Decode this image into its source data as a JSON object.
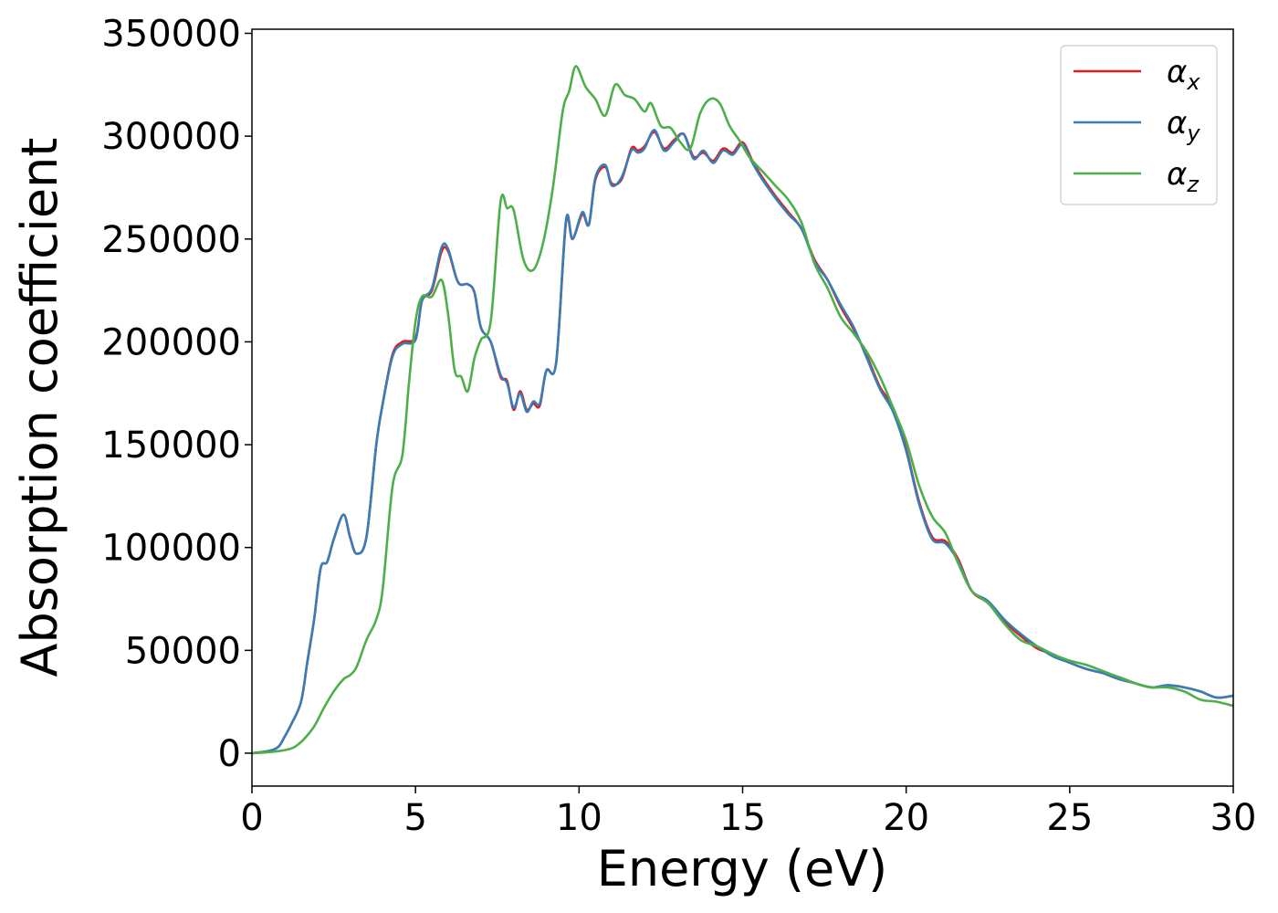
{
  "chart_data": {
    "type": "line",
    "xlabel": "Energy (eV)",
    "ylabel": "Absorption coefficient",
    "xlim": [
      0,
      30
    ],
    "ylim": [
      -16000,
      352000
    ],
    "x_ticks": [
      "0",
      "5",
      "10",
      "15",
      "20",
      "25",
      "30"
    ],
    "y_ticks": [
      "0",
      "50000",
      "100000",
      "150000",
      "200000",
      "250000",
      "300000",
      "350000"
    ],
    "grid": false,
    "legend_position": "top-right",
    "series": [
      {
        "name": "αx",
        "symbol": "α",
        "subscript": "x",
        "color": "#e41a1c",
        "x": [
          0,
          0.5,
          0.8,
          1.0,
          1.2,
          1.5,
          1.7,
          1.9,
          2.1,
          2.3,
          2.5,
          2.8,
          3.0,
          3.2,
          3.5,
          3.8,
          4.0,
          4.3,
          4.6,
          5.0,
          5.2,
          5.5,
          5.8,
          6.0,
          6.3,
          6.6,
          6.8,
          7.0,
          7.3,
          7.6,
          7.8,
          8.0,
          8.2,
          8.4,
          8.6,
          8.8,
          9.0,
          9.3,
          9.6,
          9.8,
          10.1,
          10.3,
          10.5,
          10.8,
          11.0,
          11.3,
          11.6,
          11.8,
          12.0,
          12.3,
          12.6,
          12.9,
          13.2,
          13.5,
          13.8,
          14.1,
          14.4,
          14.7,
          15.0,
          15.3,
          15.6,
          16.0,
          16.4,
          16.8,
          17.2,
          17.6,
          18.0,
          18.4,
          18.8,
          19.2,
          19.6,
          20.0,
          20.4,
          20.8,
          21.2,
          21.6,
          22.0,
          22.5,
          23.0,
          23.5,
          24.0,
          24.5,
          25.0,
          25.5,
          26.0,
          26.5,
          27.0,
          27.5,
          28.0,
          28.5,
          29.0,
          29.5,
          30.0
        ],
        "values": [
          0,
          1000,
          3000,
          8000,
          14000,
          25000,
          45000,
          65000,
          90000,
          93000,
          104000,
          116000,
          105000,
          97000,
          105000,
          150000,
          170000,
          194000,
          200000,
          202000,
          220000,
          225000,
          244000,
          244000,
          229000,
          228000,
          224000,
          207000,
          200000,
          183000,
          181000,
          167000,
          176000,
          167000,
          170000,
          169000,
          186000,
          190000,
          258000,
          250000,
          262000,
          257000,
          279000,
          285000,
          277000,
          279000,
          294000,
          293000,
          295000,
          302000,
          294000,
          298000,
          301000,
          290000,
          292000,
          288000,
          294000,
          292000,
          297000,
          288000,
          280000,
          271000,
          263000,
          255000,
          240000,
          230000,
          217000,
          206000,
          193000,
          178000,
          168000,
          148000,
          122000,
          105000,
          103000,
          94000,
          79000,
          73000,
          64000,
          57000,
          51000,
          48000,
          44000,
          41000,
          39000,
          37000,
          34000,
          32000,
          33000,
          32000,
          30000,
          27000,
          28000
        ]
      },
      {
        "name": "αy",
        "symbol": "α",
        "subscript": "y",
        "color": "#377eb8",
        "x": [
          0,
          0.5,
          0.8,
          1.0,
          1.2,
          1.5,
          1.7,
          1.9,
          2.1,
          2.3,
          2.5,
          2.8,
          3.0,
          3.2,
          3.5,
          3.8,
          4.0,
          4.3,
          4.6,
          5.0,
          5.2,
          5.5,
          5.8,
          6.0,
          6.3,
          6.6,
          6.8,
          7.0,
          7.3,
          7.6,
          7.8,
          8.0,
          8.2,
          8.4,
          8.6,
          8.8,
          9.0,
          9.3,
          9.6,
          9.8,
          10.1,
          10.3,
          10.5,
          10.8,
          11.0,
          11.3,
          11.6,
          11.8,
          12.0,
          12.3,
          12.6,
          12.9,
          13.2,
          13.5,
          13.8,
          14.1,
          14.4,
          14.7,
          15.0,
          15.3,
          15.6,
          16.0,
          16.4,
          16.8,
          17.2,
          17.6,
          18.0,
          18.4,
          18.8,
          19.2,
          19.6,
          20.0,
          20.4,
          20.8,
          21.2,
          21.6,
          22.0,
          22.5,
          23.0,
          23.5,
          24.0,
          24.5,
          25.0,
          25.5,
          26.0,
          26.5,
          27.0,
          27.5,
          28.0,
          28.5,
          29.0,
          29.5,
          30.0
        ],
        "values": [
          0,
          1000,
          3000,
          8000,
          14000,
          25000,
          45000,
          65000,
          90000,
          93000,
          104000,
          116000,
          105000,
          97000,
          105000,
          150000,
          170000,
          193000,
          199000,
          201000,
          220000,
          226000,
          246000,
          245000,
          229000,
          228000,
          224000,
          207000,
          200000,
          184000,
          180000,
          168000,
          175000,
          166000,
          171000,
          170000,
          186000,
          190000,
          259000,
          250000,
          263000,
          257000,
          280000,
          286000,
          276000,
          280000,
          293000,
          292000,
          294000,
          303000,
          293000,
          297000,
          301000,
          289000,
          293000,
          287000,
          293000,
          291000,
          296000,
          287000,
          279000,
          270000,
          262000,
          255000,
          239000,
          230000,
          218000,
          207000,
          192000,
          177000,
          166000,
          147000,
          121000,
          104000,
          102000,
          93000,
          79000,
          74000,
          65000,
          58000,
          52000,
          47000,
          44000,
          41000,
          39000,
          36000,
          34000,
          32000,
          33000,
          32000,
          30000,
          27000,
          28000
        ]
      },
      {
        "name": "αz",
        "symbol": "α",
        "subscript": "z",
        "color": "#4daf4a",
        "x": [
          0,
          0.5,
          1.0,
          1.3,
          1.6,
          1.9,
          2.2,
          2.5,
          2.8,
          3.0,
          3.2,
          3.5,
          3.8,
          4.0,
          4.3,
          4.6,
          4.8,
          5.0,
          5.2,
          5.5,
          5.8,
          6.0,
          6.2,
          6.4,
          6.6,
          6.8,
          7.0,
          7.3,
          7.6,
          7.8,
          8.0,
          8.3,
          8.6,
          8.9,
          9.2,
          9.5,
          9.7,
          9.9,
          10.2,
          10.5,
          10.8,
          11.1,
          11.4,
          11.7,
          12.0,
          12.2,
          12.5,
          12.8,
          13.1,
          13.4,
          13.7,
          14.0,
          14.3,
          14.6,
          14.9,
          15.2,
          15.6,
          16.0,
          16.4,
          16.8,
          17.2,
          17.6,
          18.0,
          18.4,
          18.8,
          19.2,
          19.6,
          20.0,
          20.4,
          20.8,
          21.2,
          21.6,
          22.0,
          22.5,
          23.0,
          23.5,
          24.0,
          24.5,
          25.0,
          25.5,
          26.0,
          26.5,
          27.0,
          27.5,
          28.0,
          28.5,
          29.0,
          29.5,
          30.0
        ],
        "values": [
          0,
          500,
          1500,
          3000,
          7000,
          13000,
          22000,
          30000,
          36000,
          38000,
          42000,
          55000,
          65000,
          80000,
          130000,
          145000,
          180000,
          210000,
          222000,
          222000,
          230000,
          213000,
          186000,
          183000,
          176000,
          192000,
          201000,
          210000,
          268000,
          265000,
          264000,
          240000,
          235000,
          248000,
          275000,
          312000,
          322000,
          334000,
          324000,
          318000,
          310000,
          325000,
          320000,
          318000,
          312000,
          316000,
          305000,
          304000,
          297000,
          294000,
          311000,
          318000,
          316000,
          305000,
          298000,
          290000,
          283000,
          276000,
          269000,
          258000,
          238000,
          226000,
          212000,
          204000,
          195000,
          183000,
          168000,
          152000,
          130000,
          115000,
          107000,
          92000,
          79000,
          73000,
          63000,
          55000,
          52000,
          48000,
          45000,
          43000,
          40000,
          37000,
          34000,
          32000,
          32000,
          30000,
          26000,
          25000,
          23000
        ]
      }
    ]
  }
}
